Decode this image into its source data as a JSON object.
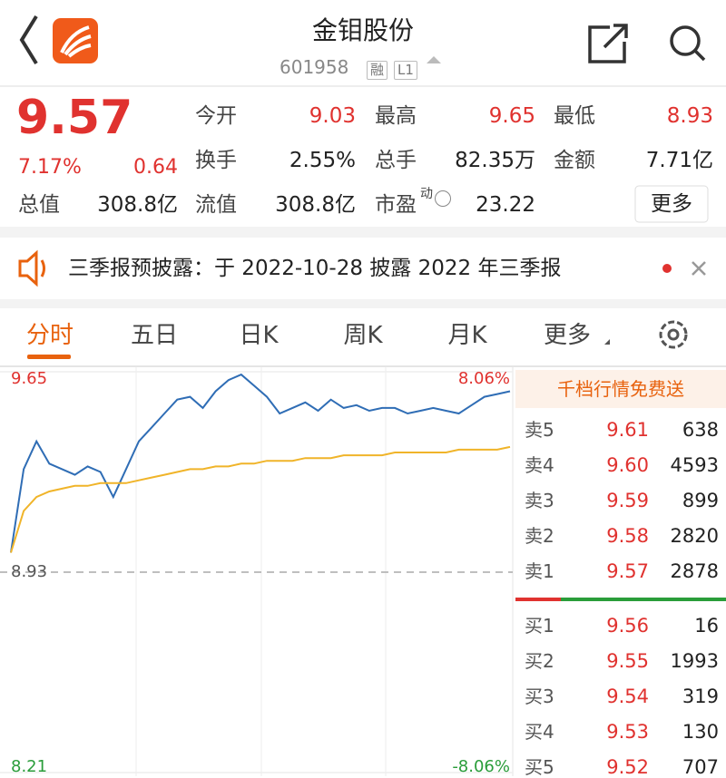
{
  "header": {
    "title": "金钼股份",
    "code": "601958",
    "badges": [
      "融",
      "L1"
    ]
  },
  "quote": {
    "price": "9.57",
    "change_pct": "7.17%",
    "change": "0.64",
    "fields": [
      {
        "label": "今开",
        "value": "9.03"
      },
      {
        "label": "最高",
        "value": "9.65"
      },
      {
        "label": "最低",
        "value": "8.93"
      },
      {
        "label": "换手",
        "value": "2.55%"
      },
      {
        "label": "总手",
        "value": "82.35万"
      },
      {
        "label": "金额",
        "value": "7.71亿"
      },
      {
        "label": "总值",
        "value": "308.8亿"
      },
      {
        "label": "流值",
        "value": "308.8亿"
      },
      {
        "label": "市盈",
        "sup": "动",
        "value": "23.22"
      }
    ],
    "more": "更多"
  },
  "notice": {
    "text": "三季报预披露：于 2022-10-28 披露 2022 年三季报"
  },
  "tabs": [
    "分时",
    "五日",
    "日K",
    "周K",
    "月K",
    "更多"
  ],
  "chart_data": {
    "type": "line",
    "ylim": [
      8.21,
      9.65
    ],
    "yticks": [
      8.21,
      8.93,
      9.65
    ],
    "pct_labels": [
      "8.06%",
      "-8.06%"
    ],
    "series": [
      {
        "name": "price",
        "color": "#2f6db5",
        "values": [
          9.0,
          9.3,
          9.4,
          9.32,
          9.3,
          9.28,
          9.31,
          9.29,
          9.2,
          9.3,
          9.4,
          9.45,
          9.5,
          9.55,
          9.56,
          9.52,
          9.58,
          9.62,
          9.64,
          9.6,
          9.56,
          9.5,
          9.52,
          9.54,
          9.51,
          9.55,
          9.52,
          9.53,
          9.51,
          9.52,
          9.52,
          9.5,
          9.51,
          9.52,
          9.51,
          9.5,
          9.53,
          9.56,
          9.57,
          9.58
        ]
      },
      {
        "name": "average",
        "color": "#f0b429",
        "values": [
          9.0,
          9.15,
          9.2,
          9.22,
          9.23,
          9.24,
          9.24,
          9.25,
          9.25,
          9.25,
          9.26,
          9.27,
          9.28,
          9.29,
          9.3,
          9.3,
          9.31,
          9.31,
          9.32,
          9.32,
          9.33,
          9.33,
          9.33,
          9.34,
          9.34,
          9.34,
          9.35,
          9.35,
          9.35,
          9.35,
          9.36,
          9.36,
          9.36,
          9.36,
          9.36,
          9.37,
          9.37,
          9.37,
          9.37,
          9.38
        ]
      }
    ]
  },
  "orderbook": {
    "title": "千档行情免费送",
    "asks": [
      {
        "label": "卖5",
        "price": "9.61",
        "volume": "638"
      },
      {
        "label": "卖4",
        "price": "9.60",
        "volume": "4593"
      },
      {
        "label": "卖3",
        "price": "9.59",
        "volume": "899"
      },
      {
        "label": "卖2",
        "price": "9.58",
        "volume": "2820"
      },
      {
        "label": "卖1",
        "price": "9.57",
        "volume": "2878"
      }
    ],
    "bids": [
      {
        "label": "买1",
        "price": "9.56",
        "volume": "16"
      },
      {
        "label": "买2",
        "price": "9.55",
        "volume": "1993"
      },
      {
        "label": "买3",
        "price": "9.54",
        "volume": "319"
      },
      {
        "label": "买4",
        "price": "9.53",
        "volume": "130"
      },
      {
        "label": "买5",
        "price": "9.52",
        "volume": "707"
      }
    ]
  }
}
